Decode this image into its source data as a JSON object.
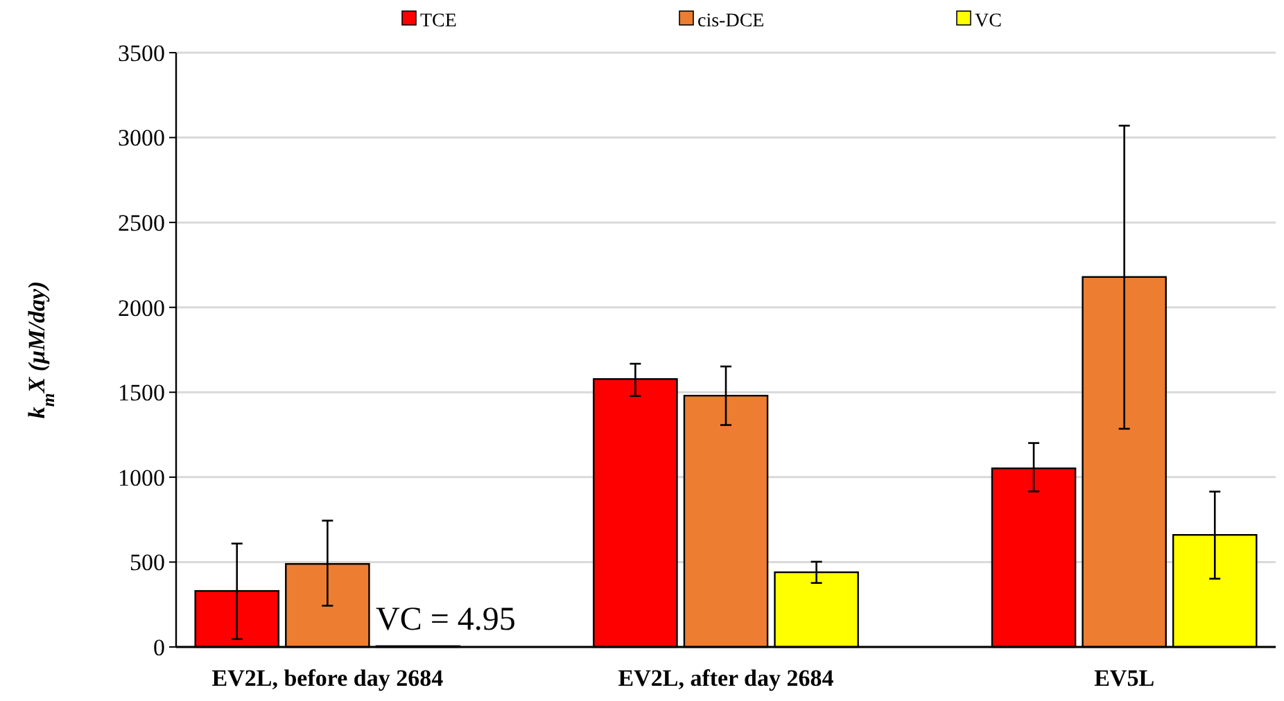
{
  "chart_data": {
    "type": "bar",
    "ylabel": "k$_{m}$X (μM/day)",
    "categories": [
      "EV2L, before day 2684",
      "EV2L, after day 2684",
      "EV5L"
    ],
    "series": [
      {
        "name": "TCE",
        "color": "#ff0000",
        "values": [
          330,
          1578,
          1052
        ],
        "errors": [
          [
            46,
            609
          ],
          [
            1478,
            1668
          ],
          [
            916,
            1201
          ]
        ]
      },
      {
        "name": "cis-DCE",
        "color": "#ed7d31",
        "values": [
          489,
          1480,
          2179
        ],
        "errors": [
          [
            243,
            744
          ],
          [
            1307,
            1652
          ],
          [
            1285,
            3070
          ]
        ]
      },
      {
        "name": "VC",
        "color": "#ffff00",
        "values": [
          4.95,
          440,
          660
        ],
        "errors": [
          null,
          [
            377,
            502
          ],
          [
            402,
            915
          ]
        ],
        "value_labels": [
          "VC = 4.95",
          null,
          null
        ]
      }
    ],
    "ylim": [
      0,
      3500
    ],
    "yticks": [
      0,
      500,
      1000,
      1500,
      2000,
      2500,
      3000,
      3500
    ],
    "grid": "y",
    "legend": "top"
  }
}
